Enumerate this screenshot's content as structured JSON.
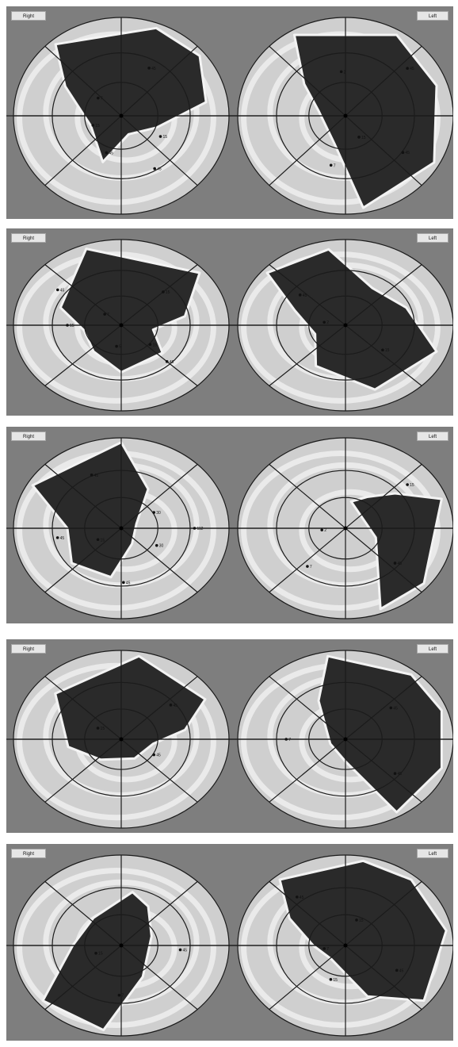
{
  "colors": {
    "panel_bg": "#7e7e7e",
    "map_dark": "#2a2a2a",
    "map_light": "#f3f3f3",
    "grid_line": "#1b1b1b"
  },
  "panels": [
    {
      "right_label": "Right",
      "left_label": "Left",
      "right_dots": [
        {
          "label": "45",
          "r": 0.55,
          "ang": 62
        },
        {
          "label": "7",
          "r": 0.28,
          "ang": 140
        },
        {
          "label": "15",
          "r": 0.28,
          "ang": 200
        },
        {
          "label": "45",
          "r": 0.4,
          "ang": 250
        },
        {
          "label": "15",
          "r": 0.42,
          "ang": 330
        },
        {
          "label": "45",
          "r": 0.62,
          "ang": 300
        }
      ],
      "left_dots": [
        {
          "label": "2",
          "r": 0.45,
          "ang": 95
        },
        {
          "label": "45",
          "r": 0.75,
          "ang": 40
        },
        {
          "label": "15",
          "r": 0.25,
          "ang": 300
        },
        {
          "label": "45",
          "r": 0.65,
          "ang": 325
        },
        {
          "label": "7",
          "r": 0.52,
          "ang": 255
        }
      ]
    },
    {
      "right_label": "Right",
      "left_label": "Left",
      "right_dots": [
        {
          "label": "45",
          "r": 0.72,
          "ang": 145
        },
        {
          "label": "15",
          "r": 0.55,
          "ang": 45
        },
        {
          "label": "7",
          "r": 0.2,
          "ang": 140
        },
        {
          "label": "15",
          "r": 0.5,
          "ang": 180
        },
        {
          "label": "5",
          "r": 0.25,
          "ang": 260
        },
        {
          "label": "15",
          "r": 0.35,
          "ang": 320
        },
        {
          "label": "45",
          "r": 0.6,
          "ang": 315
        }
      ],
      "left_dots": [
        {
          "label": "45",
          "r": 0.55,
          "ang": 140
        },
        {
          "label": "2",
          "r": 0.2,
          "ang": 170
        },
        {
          "label": "15",
          "r": 0.45,
          "ang": 320
        }
      ]
    },
    {
      "right_label": "Right",
      "left_label": "Left",
      "right_dots": [
        {
          "label": "45",
          "r": 0.65,
          "ang": 115
        },
        {
          "label": "30",
          "r": 0.35,
          "ang": 30
        },
        {
          "label": "15",
          "r": 0.25,
          "ang": 210
        },
        {
          "label": "45",
          "r": 0.6,
          "ang": 190
        },
        {
          "label": "30",
          "r": 0.38,
          "ang": 330
        },
        {
          "label": "112",
          "r": 0.68,
          "ang": 0
        },
        {
          "label": "45",
          "r": 0.6,
          "ang": 272
        }
      ],
      "left_dots": [
        {
          "label": "15",
          "r": 0.75,
          "ang": 40
        },
        {
          "label": "2",
          "r": 0.22,
          "ang": 185
        },
        {
          "label": "7",
          "r": 0.55,
          "ang": 230
        },
        {
          "label": "45",
          "r": 0.6,
          "ang": 320
        }
      ]
    },
    {
      "right_label": "Right",
      "left_label": "Left",
      "right_dots": [
        {
          "label": "45",
          "r": 0.6,
          "ang": 40
        },
        {
          "label": "15",
          "r": 0.25,
          "ang": 150
        },
        {
          "label": "45",
          "r": 0.35,
          "ang": 330
        }
      ],
      "left_dots": [
        {
          "label": "45",
          "r": 0.55,
          "ang": 40
        },
        {
          "label": "7",
          "r": 0.55,
          "ang": 180
        },
        {
          "label": "45",
          "r": 0.6,
          "ang": 320
        }
      ]
    },
    {
      "right_label": "Right",
      "left_label": "Left",
      "right_dots": [
        {
          "label": "15",
          "r": 0.25,
          "ang": 200
        },
        {
          "label": "45",
          "r": 0.55,
          "ang": 355
        },
        {
          "label": "7",
          "r": 0.55,
          "ang": 268
        }
      ],
      "left_dots": [
        {
          "label": "45",
          "r": 0.7,
          "ang": 130
        },
        {
          "label": "15",
          "r": 0.3,
          "ang": 70
        },
        {
          "label": "7",
          "r": 0.2,
          "ang": 190
        },
        {
          "label": "45",
          "r": 0.55,
          "ang": 330
        },
        {
          "label": "15",
          "r": 0.4,
          "ang": 250
        }
      ]
    }
  ]
}
